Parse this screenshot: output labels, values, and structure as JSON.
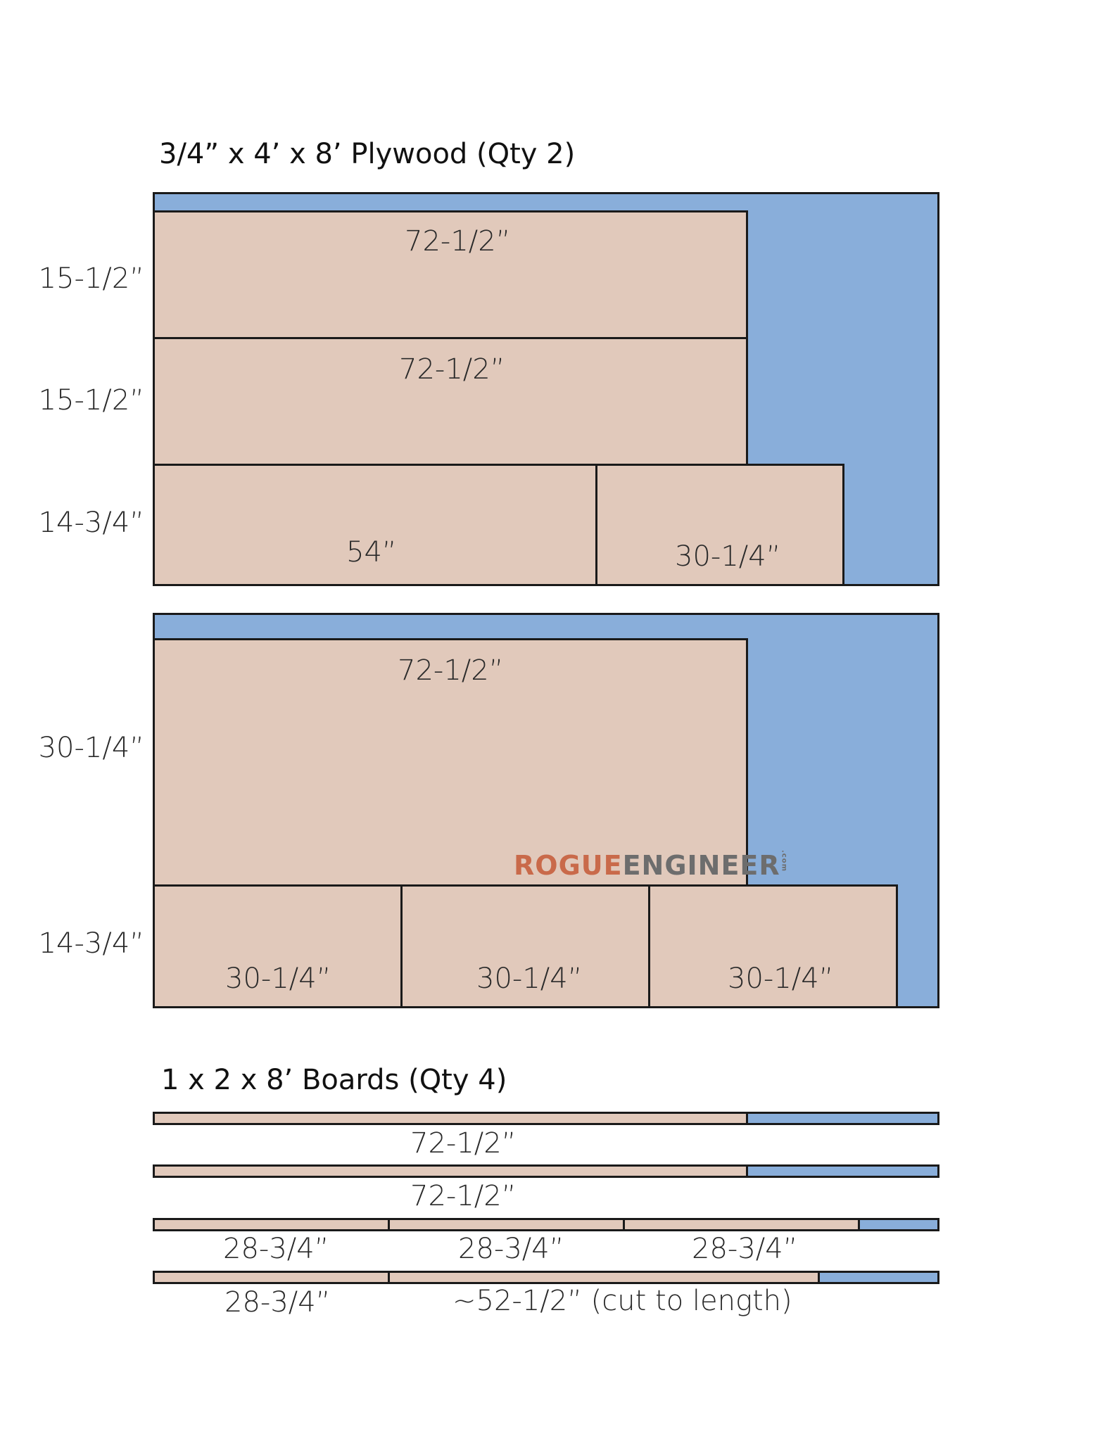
{
  "plywood": {
    "title": "3/4” x 4’ x 8’ Plywood (Qty 2)",
    "sheet1": {
      "side_labels": [
        "15-1/2”",
        "15-1/2”",
        "14-3/4”"
      ],
      "pieces": [
        "72-1/2”",
        "72-1/2”",
        "54”",
        "30-1/4”"
      ]
    },
    "sheet2": {
      "side_labels": [
        "30-1/4”",
        "14-3/4”"
      ],
      "pieces": [
        "72-1/2”",
        "30-1/4”",
        "30-1/4”",
        "30-1/4”"
      ]
    }
  },
  "boards": {
    "title": "1 x 2 x 8’ Boards (Qty 4)",
    "rows": [
      {
        "labels": [
          "72-1/2”"
        ]
      },
      {
        "labels": [
          "72-1/2”"
        ]
      },
      {
        "labels": [
          "28-3/4”",
          "28-3/4”",
          "28-3/4”"
        ]
      },
      {
        "labels": [
          "28-3/4”",
          "~52-1/2” (cut to length)"
        ]
      }
    ]
  },
  "watermark": {
    "part1": "ROGUE",
    "part2": "ENGINEER",
    "suffix": ".com"
  },
  "colors": {
    "scrap": "#89aeda",
    "piece": "#e1c9bb",
    "outline": "#1a1a1a"
  }
}
